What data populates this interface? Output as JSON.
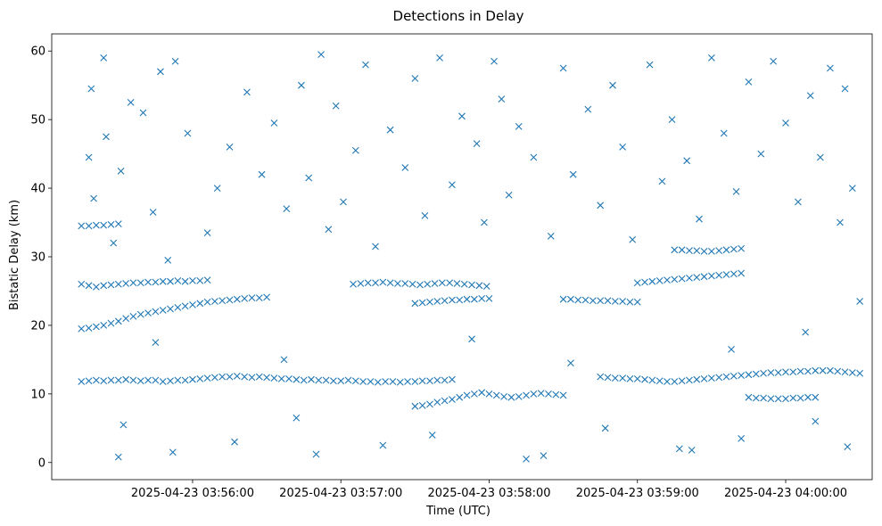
{
  "chart_data": {
    "type": "scatter",
    "title": "Detections in Delay",
    "xlabel": "Time (UTC)",
    "ylabel": "Bistatic Delay (km)",
    "x_ticks": [
      "2025-04-23 03:56:00",
      "2025-04-23 03:57:00",
      "2025-04-23 03:58:00",
      "2025-04-23 03:59:00",
      "2025-04-23 04:00:00"
    ],
    "y_ticks": [
      0,
      10,
      20,
      30,
      40,
      50,
      60
    ],
    "xlim": [
      "2025-04-23 03:55:03",
      "2025-04-23 04:00:35"
    ],
    "ylim": [
      -2.5,
      62.5
    ],
    "marker": "x",
    "color": "#1f77b4",
    "grid": false,
    "legend": "none",
    "series": [
      {
        "x": [
          "2025-04-23 03:55:18",
          "2025-04-23 03:55:19",
          "2025-04-23 03:55:20",
          "2025-04-23 03:55:24",
          "2025-04-23 03:55:25",
          "2025-04-23 03:55:28",
          "2025-04-23 03:55:31",
          "2025-04-23 03:55:35",
          "2025-04-23 03:55:40",
          "2025-04-23 03:55:44",
          "2025-04-23 03:55:47",
          "2025-04-23 03:55:50",
          "2025-04-23 03:55:53",
          "2025-04-23 03:55:58",
          "2025-04-23 03:56:06",
          "2025-04-23 03:56:10",
          "2025-04-23 03:56:15",
          "2025-04-23 03:56:22",
          "2025-04-23 03:56:28",
          "2025-04-23 03:56:33",
          "2025-04-23 03:56:38",
          "2025-04-23 03:56:44",
          "2025-04-23 03:56:47",
          "2025-04-23 03:56:52",
          "2025-04-23 03:56:55",
          "2025-04-23 03:56:58",
          "2025-04-23 03:57:01",
          "2025-04-23 03:57:06",
          "2025-04-23 03:57:10",
          "2025-04-23 03:57:14",
          "2025-04-23 03:57:20",
          "2025-04-23 03:57:26",
          "2025-04-23 03:57:30",
          "2025-04-23 03:57:34",
          "2025-04-23 03:57:40",
          "2025-04-23 03:57:45",
          "2025-04-23 03:57:49",
          "2025-04-23 03:57:55",
          "2025-04-23 03:57:58",
          "2025-04-23 03:58:02",
          "2025-04-23 03:58:05",
          "2025-04-23 03:58:08",
          "2025-04-23 03:58:12",
          "2025-04-23 03:58:18",
          "2025-04-23 03:58:25",
          "2025-04-23 03:58:30",
          "2025-04-23 03:58:34",
          "2025-04-23 03:58:40",
          "2025-04-23 03:58:45",
          "2025-04-23 03:58:50",
          "2025-04-23 03:58:54",
          "2025-04-23 03:58:58",
          "2025-04-23 03:59:05",
          "2025-04-23 03:59:10",
          "2025-04-23 03:59:14",
          "2025-04-23 03:59:20",
          "2025-04-23 03:59:25",
          "2025-04-23 03:59:30",
          "2025-04-23 03:59:35",
          "2025-04-23 03:59:40",
          "2025-04-23 03:59:45",
          "2025-04-23 03:59:50",
          "2025-04-23 03:59:55",
          "2025-04-23 04:00:00",
          "2025-04-23 04:00:05",
          "2025-04-23 04:00:10",
          "2025-04-23 04:00:14",
          "2025-04-23 04:00:18",
          "2025-04-23 04:00:22",
          "2025-04-23 04:00:24",
          "2025-04-23 04:00:27",
          "2025-04-23 04:00:30",
          "2025-04-23 03:55:32",
          "2025-04-23 03:55:52",
          "2025-04-23 03:56:17",
          "2025-04-23 03:56:42",
          "2025-04-23 03:57:17",
          "2025-04-23 03:57:37",
          "2025-04-23 03:58:22",
          "2025-04-23 03:58:47",
          "2025-04-23 03:59:17",
          "2025-04-23 03:59:42",
          "2025-04-23 04:00:12",
          "2025-04-23 03:55:45",
          "2025-04-23 03:56:37",
          "2025-04-23 03:57:53",
          "2025-04-23 03:58:33",
          "2025-04-23 03:59:38",
          "2025-04-23 04:00:08",
          "2025-04-23 03:55:30",
          "2025-04-23 03:56:50",
          "2025-04-23 03:58:15",
          "2025-04-23 03:59:22",
          "2025-04-23 04:00:25"
        ],
        "y": [
          44.5,
          54.5,
          38.5,
          59.0,
          47.5,
          32.0,
          42.5,
          52.5,
          51.0,
          36.5,
          57.0,
          29.5,
          58.5,
          48.0,
          33.5,
          40.0,
          46.0,
          54.0,
          42.0,
          49.5,
          37.0,
          55.0,
          41.5,
          59.5,
          34.0,
          52.0,
          38.0,
          45.5,
          58.0,
          31.5,
          48.5,
          43.0,
          56.0,
          36.0,
          59.0,
          40.5,
          50.5,
          46.5,
          35.0,
          58.5,
          53.0,
          39.0,
          49.0,
          44.5,
          33.0,
          57.5,
          42.0,
          51.5,
          37.5,
          55.0,
          46.0,
          32.5,
          58.0,
          41.0,
          50.0,
          44.0,
          35.5,
          59.0,
          48.0,
          39.5,
          55.5,
          45.0,
          58.5,
          49.5,
          38.0,
          53.5,
          44.5,
          57.5,
          35.0,
          54.5,
          40.0,
          23.5,
          5.5,
          1.5,
          3.0,
          6.5,
          2.5,
          4.0,
          1.0,
          5.0,
          2.0,
          3.5,
          6.0,
          17.5,
          15.0,
          18.0,
          14.5,
          16.5,
          19.0,
          0.8,
          1.2,
          0.5,
          1.8,
          2.3
        ],
        "type": "noise"
      },
      {
        "x": [
          "2025-04-23 03:55:15",
          "2025-04-23 03:55:18",
          "2025-04-23 03:55:21",
          "2025-04-23 03:55:24",
          "2025-04-23 03:55:27",
          "2025-04-23 03:55:30",
          "2025-04-23 03:55:33",
          "2025-04-23 03:55:36",
          "2025-04-23 03:55:39",
          "2025-04-23 03:55:42",
          "2025-04-23 03:55:45",
          "2025-04-23 03:55:48",
          "2025-04-23 03:55:51",
          "2025-04-23 03:55:54",
          "2025-04-23 03:55:57",
          "2025-04-23 03:56:00",
          "2025-04-23 03:56:03",
          "2025-04-23 03:56:06",
          "2025-04-23 03:56:09",
          "2025-04-23 03:56:12",
          "2025-04-23 03:56:15",
          "2025-04-23 03:56:18",
          "2025-04-23 03:56:21",
          "2025-04-23 03:56:24",
          "2025-04-23 03:56:27",
          "2025-04-23 03:56:30"
        ],
        "y": [
          19.5,
          19.6,
          19.8,
          20.0,
          20.3,
          20.6,
          21.0,
          21.3,
          21.6,
          21.8,
          22.0,
          22.2,
          22.4,
          22.6,
          22.8,
          23.0,
          23.2,
          23.4,
          23.5,
          23.6,
          23.7,
          23.8,
          23.9,
          24.0,
          24.0,
          24.1
        ],
        "type": "track"
      },
      {
        "x": [
          "2025-04-23 03:55:15",
          "2025-04-23 03:55:18",
          "2025-04-23 03:55:21",
          "2025-04-23 03:55:24",
          "2025-04-23 03:55:27",
          "2025-04-23 03:55:30",
          "2025-04-23 03:55:33",
          "2025-04-23 03:55:36",
          "2025-04-23 03:55:39",
          "2025-04-23 03:55:42",
          "2025-04-23 03:55:45",
          "2025-04-23 03:55:48",
          "2025-04-23 03:55:51",
          "2025-04-23 03:55:54",
          "2025-04-23 03:55:57",
          "2025-04-23 03:56:00",
          "2025-04-23 03:56:03",
          "2025-04-23 03:56:06",
          "2025-04-23 03:56:09",
          "2025-04-23 03:56:12",
          "2025-04-23 03:56:15",
          "2025-04-23 03:56:18",
          "2025-04-23 03:56:21",
          "2025-04-23 03:56:24",
          "2025-04-23 03:56:27",
          "2025-04-23 03:56:30",
          "2025-04-23 03:56:33",
          "2025-04-23 03:56:36",
          "2025-04-23 03:56:39",
          "2025-04-23 03:56:42",
          "2025-04-23 03:56:45",
          "2025-04-23 03:56:48",
          "2025-04-23 03:56:51",
          "2025-04-23 03:56:54",
          "2025-04-23 03:56:57",
          "2025-04-23 03:57:00",
          "2025-04-23 03:57:03",
          "2025-04-23 03:57:06",
          "2025-04-23 03:57:09",
          "2025-04-23 03:57:12",
          "2025-04-23 03:57:15",
          "2025-04-23 03:57:18",
          "2025-04-23 03:57:21",
          "2025-04-23 03:57:24",
          "2025-04-23 03:57:27",
          "2025-04-23 03:57:30",
          "2025-04-23 03:57:33",
          "2025-04-23 03:57:36",
          "2025-04-23 03:57:39",
          "2025-04-23 03:57:42",
          "2025-04-23 03:57:45"
        ],
        "y": [
          11.8,
          11.9,
          12.0,
          11.9,
          12.0,
          12.0,
          12.1,
          12.0,
          11.9,
          12.0,
          12.0,
          11.8,
          11.9,
          12.0,
          12.0,
          12.1,
          12.2,
          12.3,
          12.4,
          12.5,
          12.5,
          12.6,
          12.5,
          12.4,
          12.5,
          12.4,
          12.3,
          12.2,
          12.2,
          12.1,
          12.0,
          12.1,
          12.0,
          12.0,
          11.9,
          11.9,
          12.0,
          11.9,
          11.8,
          11.8,
          11.7,
          11.8,
          11.8,
          11.7,
          11.8,
          11.8,
          11.9,
          11.9,
          12.0,
          12.0,
          12.1
        ],
        "type": "track"
      },
      {
        "x": [
          "2025-04-23 03:55:15",
          "2025-04-23 03:55:18",
          "2025-04-23 03:55:21",
          "2025-04-23 03:55:24",
          "2025-04-23 03:55:27",
          "2025-04-23 03:55:30",
          "2025-04-23 03:55:33",
          "2025-04-23 03:55:36",
          "2025-04-23 03:55:39",
          "2025-04-23 03:55:42",
          "2025-04-23 03:55:45",
          "2025-04-23 03:55:48",
          "2025-04-23 03:55:51",
          "2025-04-23 03:55:54",
          "2025-04-23 03:55:57",
          "2025-04-23 03:56:00",
          "2025-04-23 03:56:03",
          "2025-04-23 03:56:06"
        ],
        "y": [
          26.0,
          25.8,
          25.6,
          25.8,
          25.9,
          26.0,
          26.1,
          26.2,
          26.2,
          26.3,
          26.3,
          26.4,
          26.4,
          26.5,
          26.4,
          26.5,
          26.5,
          26.6
        ],
        "type": "track"
      },
      {
        "x": [
          "2025-04-23 03:55:15",
          "2025-04-23 03:55:18",
          "2025-04-23 03:55:21",
          "2025-04-23 03:55:24",
          "2025-04-23 03:55:27",
          "2025-04-23 03:55:30"
        ],
        "y": [
          34.5,
          34.5,
          34.6,
          34.6,
          34.7,
          34.8
        ],
        "type": "track"
      },
      {
        "x": [
          "2025-04-23 03:57:05",
          "2025-04-23 03:57:08",
          "2025-04-23 03:57:11",
          "2025-04-23 03:57:14",
          "2025-04-23 03:57:17",
          "2025-04-23 03:57:20",
          "2025-04-23 03:57:23",
          "2025-04-23 03:57:26",
          "2025-04-23 03:57:29",
          "2025-04-23 03:57:32",
          "2025-04-23 03:57:35",
          "2025-04-23 03:57:38",
          "2025-04-23 03:57:41",
          "2025-04-23 03:57:44",
          "2025-04-23 03:57:47",
          "2025-04-23 03:57:50",
          "2025-04-23 03:57:53",
          "2025-04-23 03:57:56",
          "2025-04-23 03:57:59"
        ],
        "y": [
          26.0,
          26.1,
          26.2,
          26.2,
          26.3,
          26.2,
          26.1,
          26.1,
          26.0,
          25.9,
          26.0,
          26.1,
          26.2,
          26.2,
          26.1,
          26.0,
          25.9,
          25.8,
          25.7
        ],
        "type": "track"
      },
      {
        "x": [
          "2025-04-23 03:57:30",
          "2025-04-23 03:57:33",
          "2025-04-23 03:57:36",
          "2025-04-23 03:57:39",
          "2025-04-23 03:57:42",
          "2025-04-23 03:57:45",
          "2025-04-23 03:57:48",
          "2025-04-23 03:57:51",
          "2025-04-23 03:57:54",
          "2025-04-23 03:57:57",
          "2025-04-23 03:58:00"
        ],
        "y": [
          23.2,
          23.3,
          23.4,
          23.5,
          23.6,
          23.7,
          23.7,
          23.8,
          23.8,
          23.9,
          23.9
        ],
        "type": "track"
      },
      {
        "x": [
          "2025-04-23 03:57:30",
          "2025-04-23 03:57:33",
          "2025-04-23 03:57:36",
          "2025-04-23 03:57:39",
          "2025-04-23 03:57:42",
          "2025-04-23 03:57:45",
          "2025-04-23 03:57:48",
          "2025-04-23 03:57:51",
          "2025-04-23 03:57:54",
          "2025-04-23 03:57:57",
          "2025-04-23 03:58:00",
          "2025-04-23 03:58:03",
          "2025-04-23 03:58:06",
          "2025-04-23 03:58:09",
          "2025-04-23 03:58:12",
          "2025-04-23 03:58:15",
          "2025-04-23 03:58:18",
          "2025-04-23 03:58:21",
          "2025-04-23 03:58:24",
          "2025-04-23 03:58:27",
          "2025-04-23 03:58:30"
        ],
        "y": [
          8.2,
          8.3,
          8.5,
          8.8,
          9.0,
          9.2,
          9.5,
          9.8,
          10.0,
          10.2,
          10.0,
          9.8,
          9.6,
          9.5,
          9.6,
          9.8,
          10.0,
          10.1,
          10.0,
          9.9,
          9.8
        ],
        "type": "track"
      },
      {
        "x": [
          "2025-04-23 03:58:45",
          "2025-04-23 03:58:48",
          "2025-04-23 03:58:51",
          "2025-04-23 03:58:54",
          "2025-04-23 03:58:57",
          "2025-04-23 03:59:00",
          "2025-04-23 03:59:03",
          "2025-04-23 03:59:06",
          "2025-04-23 03:59:09",
          "2025-04-23 03:59:12",
          "2025-04-23 03:59:15",
          "2025-04-23 03:59:18",
          "2025-04-23 03:59:21",
          "2025-04-23 03:59:24",
          "2025-04-23 03:59:27",
          "2025-04-23 03:59:30",
          "2025-04-23 03:59:33",
          "2025-04-23 03:59:36",
          "2025-04-23 03:59:39",
          "2025-04-23 03:59:42",
          "2025-04-23 03:59:45",
          "2025-04-23 03:59:48",
          "2025-04-23 03:59:51",
          "2025-04-23 03:59:54",
          "2025-04-23 03:59:57",
          "2025-04-23 04:00:00",
          "2025-04-23 04:00:03",
          "2025-04-23 04:00:06",
          "2025-04-23 04:00:09",
          "2025-04-23 04:00:12",
          "2025-04-23 04:00:15",
          "2025-04-23 04:00:18",
          "2025-04-23 04:00:21",
          "2025-04-23 04:00:24",
          "2025-04-23 04:00:27",
          "2025-04-23 04:00:30"
        ],
        "y": [
          12.5,
          12.4,
          12.3,
          12.3,
          12.2,
          12.2,
          12.1,
          12.0,
          11.9,
          11.8,
          11.8,
          11.9,
          12.0,
          12.1,
          12.2,
          12.3,
          12.4,
          12.5,
          12.6,
          12.7,
          12.8,
          12.9,
          13.0,
          13.1,
          13.1,
          13.2,
          13.2,
          13.3,
          13.3,
          13.4,
          13.4,
          13.4,
          13.3,
          13.2,
          13.1,
          13.0
        ],
        "type": "track"
      },
      {
        "x": [
          "2025-04-23 03:58:30",
          "2025-04-23 03:58:33",
          "2025-04-23 03:58:36",
          "2025-04-23 03:58:39",
          "2025-04-23 03:58:42",
          "2025-04-23 03:58:45",
          "2025-04-23 03:58:48",
          "2025-04-23 03:58:51",
          "2025-04-23 03:58:54",
          "2025-04-23 03:58:57",
          "2025-04-23 03:59:00"
        ],
        "y": [
          23.8,
          23.8,
          23.7,
          23.7,
          23.6,
          23.6,
          23.6,
          23.5,
          23.5,
          23.4,
          23.4
        ],
        "type": "track"
      },
      {
        "x": [
          "2025-04-23 03:59:00",
          "2025-04-23 03:59:03",
          "2025-04-23 03:59:06",
          "2025-04-23 03:59:09",
          "2025-04-23 03:59:12",
          "2025-04-23 03:59:15",
          "2025-04-23 03:59:18",
          "2025-04-23 03:59:21",
          "2025-04-23 03:59:24",
          "2025-04-23 03:59:27",
          "2025-04-23 03:59:30",
          "2025-04-23 03:59:33",
          "2025-04-23 03:59:36",
          "2025-04-23 03:59:39",
          "2025-04-23 03:59:42"
        ],
        "y": [
          26.2,
          26.3,
          26.4,
          26.5,
          26.6,
          26.7,
          26.8,
          26.9,
          27.0,
          27.1,
          27.2,
          27.3,
          27.4,
          27.5,
          27.6
        ],
        "type": "track"
      },
      {
        "x": [
          "2025-04-23 03:59:15",
          "2025-04-23 03:59:18",
          "2025-04-23 03:59:21",
          "2025-04-23 03:59:24",
          "2025-04-23 03:59:27",
          "2025-04-23 03:59:30",
          "2025-04-23 03:59:33",
          "2025-04-23 03:59:36",
          "2025-04-23 03:59:39",
          "2025-04-23 03:59:42"
        ],
        "y": [
          31.0,
          31.0,
          30.9,
          30.9,
          30.8,
          30.8,
          30.9,
          31.0,
          31.1,
          31.2
        ],
        "type": "track"
      },
      {
        "x": [
          "2025-04-23 03:59:45",
          "2025-04-23 03:59:48",
          "2025-04-23 03:59:51",
          "2025-04-23 03:59:54",
          "2025-04-23 03:59:57",
          "2025-04-23 04:00:00",
          "2025-04-23 04:00:03",
          "2025-04-23 04:00:06",
          "2025-04-23 04:00:09",
          "2025-04-23 04:00:12"
        ],
        "y": [
          9.5,
          9.4,
          9.4,
          9.3,
          9.3,
          9.3,
          9.4,
          9.4,
          9.5,
          9.5
        ],
        "type": "track"
      }
    ]
  }
}
